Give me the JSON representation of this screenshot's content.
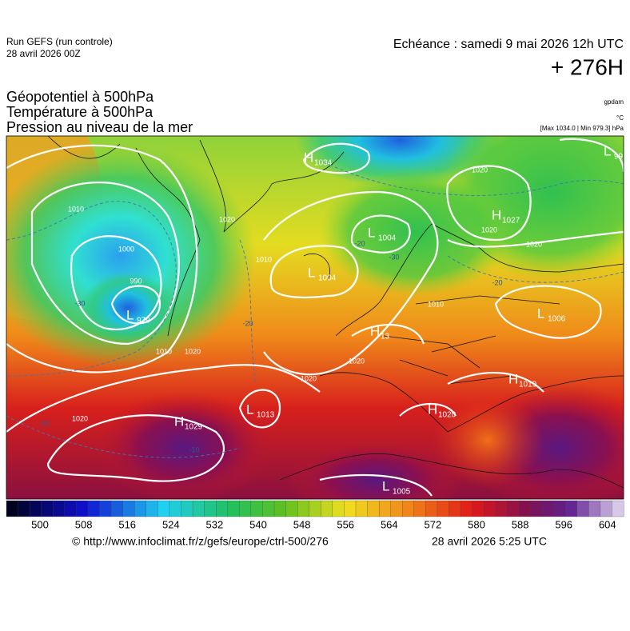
{
  "header": {
    "run": "Run GEFS (run controle)",
    "date": "28 avril 2026 00Z",
    "echeance": "Echéance : samedi 9 mai 2026 12h UTC",
    "lead": "+ 276H"
  },
  "fields": [
    "Géopotentiel à 500hPa",
    "Température à 500hPa",
    "Pression au niveau de la mer"
  ],
  "units": [
    "gpdam",
    "°C",
    "[Max 1034.0 | Min 979.3] hPa"
  ],
  "centers": [
    {
      "letter": "H",
      "value": "1034"
    },
    {
      "letter": "L",
      "value": "99"
    },
    {
      "letter": "H",
      "value": "1027"
    },
    {
      "letter": "L",
      "value": "1004"
    },
    {
      "letter": "L",
      "value": "1004"
    },
    {
      "letter": "L",
      "value": "979"
    },
    {
      "letter": "L",
      "value": "1006"
    },
    {
      "letter": "H",
      "value": "13"
    },
    {
      "letter": "H",
      "value": "1019"
    },
    {
      "letter": "H",
      "value": "1029"
    },
    {
      "letter": "L",
      "value": "1013"
    },
    {
      "letter": "H",
      "value": "1020"
    },
    {
      "letter": "L",
      "value": "1005"
    }
  ],
  "isobar_labels": [
    "1010",
    "1000",
    "990",
    "1010",
    "1020",
    "1020",
    "1020",
    "1020",
    "1020",
    "1010",
    "1020",
    "1020",
    "1020",
    "1010"
  ],
  "temperature_labels": [
    "-30",
    "-20",
    "-20",
    "-10",
    "-10",
    "-30",
    "-20"
  ],
  "colorbar": [
    500,
    508,
    516,
    524,
    532,
    540,
    548,
    556,
    564,
    572,
    580,
    588,
    596,
    604
  ],
  "footer": {
    "source": "© http://www.infoclimat.fr/z/gefs/europe/ctrl-500/276",
    "time": "28 avril 2026  5:25 UTC"
  }
}
